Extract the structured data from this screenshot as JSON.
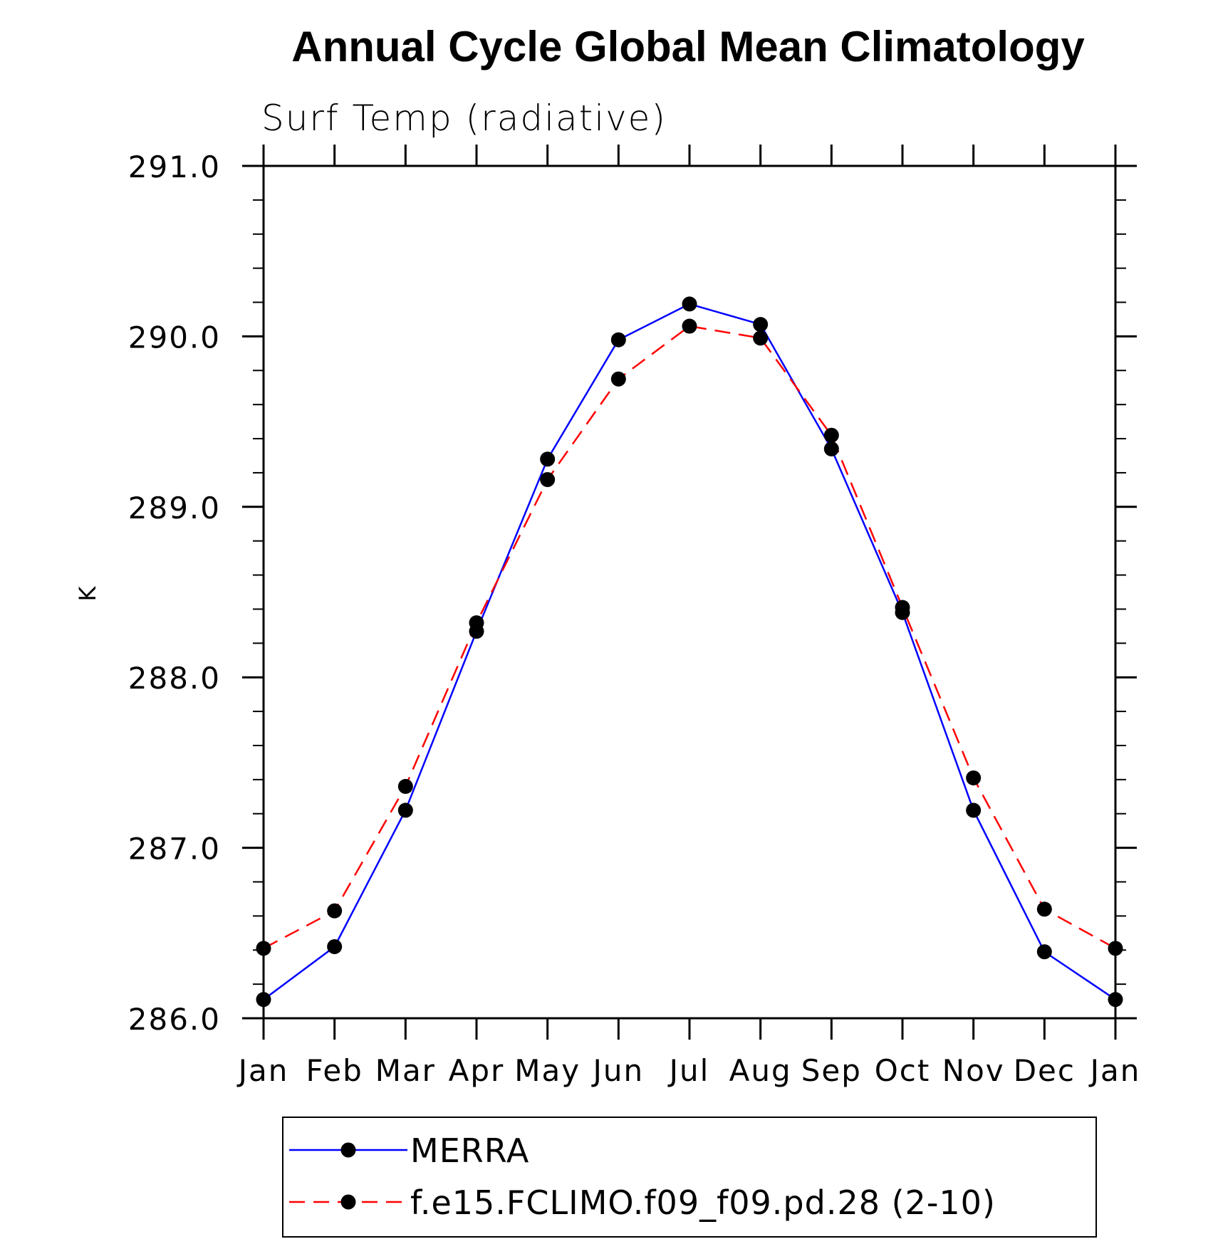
{
  "chart_data": {
    "type": "line",
    "title": "Annual Cycle Global Mean Climatology",
    "subtitle": "Surf Temp (radiative)",
    "xlabel": "",
    "ylabel": "K",
    "categories": [
      "Jan",
      "Feb",
      "Mar",
      "Apr",
      "May",
      "Jun",
      "Jul",
      "Aug",
      "Sep",
      "Oct",
      "Nov",
      "Dec",
      "Jan"
    ],
    "ylim": [
      286.0,
      291.0
    ],
    "yticks": [
      286.0,
      287.0,
      288.0,
      289.0,
      290.0,
      291.0
    ],
    "ytick_labels": [
      "286.0",
      "287.0",
      "288.0",
      "289.0",
      "290.0",
      "291.0"
    ],
    "y_minor_step": 0.2,
    "grid": false,
    "legend_position": "bottom",
    "series": [
      {
        "name": "MERRA",
        "color": "#0000ff",
        "dash": "solid",
        "marker": "filled-circle",
        "values": [
          286.11,
          286.42,
          287.22,
          288.27,
          289.28,
          289.98,
          290.19,
          290.07,
          289.34,
          288.38,
          287.22,
          286.39,
          286.11
        ]
      },
      {
        "name": "f.e15.FCLIMO.f09_f09.pd.28 (2-10)",
        "color": "#ff0000",
        "dash": "dashed",
        "marker": "filled-circle",
        "values": [
          286.41,
          286.63,
          287.36,
          288.32,
          289.16,
          289.75,
          290.06,
          289.99,
          289.42,
          288.41,
          287.41,
          286.64,
          286.41
        ]
      }
    ]
  },
  "colors": {
    "axis": "#000000",
    "marker": "#000000",
    "background": "#ffffff"
  }
}
